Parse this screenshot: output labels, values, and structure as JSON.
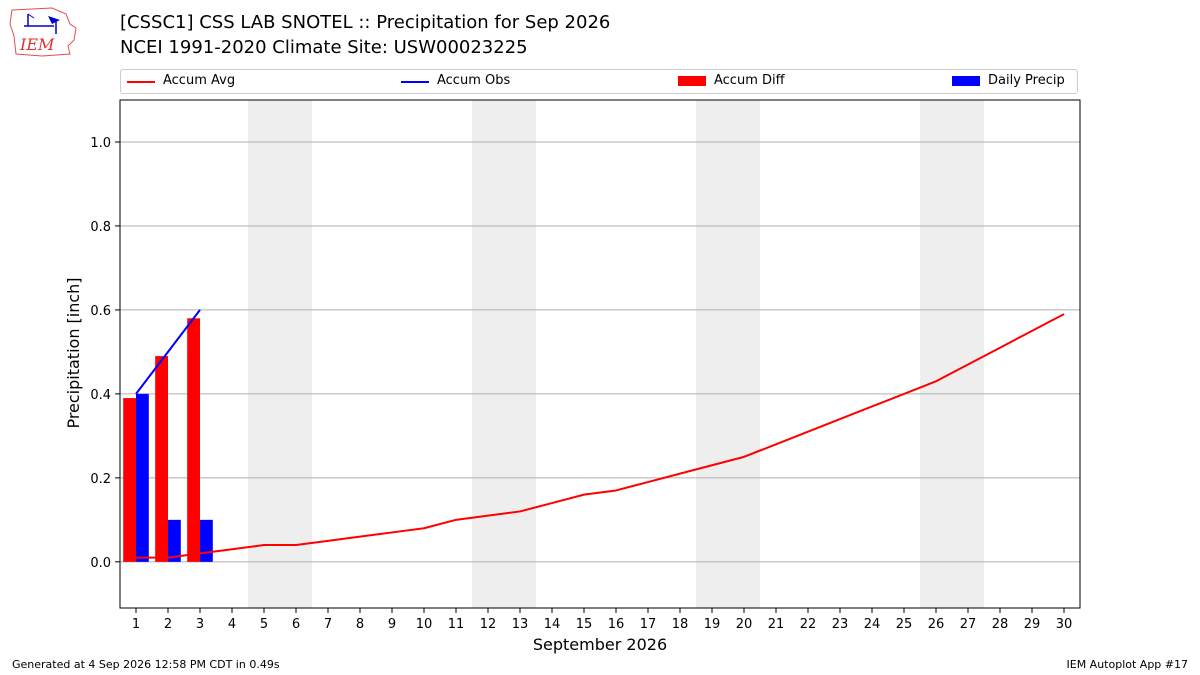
{
  "header": {
    "logo_text": "IEM",
    "title_line1": "[CSSC1] CSS LAB SNOTEL :: Precipitation for Sep 2026",
    "title_line2": "NCEI 1991-2020 Climate Site: USW00023225"
  },
  "legend": {
    "placement": "top, above plot",
    "items": [
      {
        "label": "Accum Avg",
        "kind": "line",
        "color": "#ff0000"
      },
      {
        "label": "Accum Obs",
        "kind": "line",
        "color": "#0000ff"
      },
      {
        "label": "Accum Diff",
        "kind": "bar",
        "color": "#ff0000"
      },
      {
        "label": "Daily Precip",
        "kind": "bar",
        "color": "#0000ff"
      }
    ]
  },
  "chart_data": {
    "type": "bar",
    "xlabel": "September 2026",
    "ylabel": "Precipitation [inch]",
    "xlim": [
      0.5,
      30.5
    ],
    "ylim": [
      -0.11,
      1.1
    ],
    "yticks": [
      0.0,
      0.2,
      0.4,
      0.6,
      0.8,
      1.0
    ],
    "ytick_labels": [
      "0.0",
      "0.2",
      "0.4",
      "0.6",
      "0.8",
      "1.0"
    ],
    "xticks": [
      1,
      2,
      3,
      4,
      5,
      6,
      7,
      8,
      9,
      10,
      11,
      12,
      13,
      14,
      15,
      16,
      17,
      18,
      19,
      20,
      21,
      22,
      23,
      24,
      25,
      26,
      27,
      28,
      29,
      30
    ],
    "grid": "horizontal",
    "weekend_shading": [
      [
        4.5,
        6.5
      ],
      [
        11.5,
        13.5
      ],
      [
        18.5,
        20.5
      ],
      [
        25.5,
        27.5
      ]
    ],
    "shade_color": "#eeeeee",
    "accum_avg": {
      "name": "Accum Avg",
      "color": "#ff0000",
      "x": [
        1,
        2,
        3,
        4,
        5,
        6,
        7,
        8,
        9,
        10,
        11,
        12,
        13,
        14,
        15,
        16,
        17,
        18,
        19,
        20,
        21,
        22,
        23,
        24,
        25,
        26,
        27,
        28,
        29,
        30
      ],
      "y": [
        0.01,
        0.01,
        0.02,
        0.03,
        0.04,
        0.04,
        0.05,
        0.06,
        0.07,
        0.08,
        0.1,
        0.11,
        0.12,
        0.14,
        0.16,
        0.17,
        0.19,
        0.21,
        0.23,
        0.25,
        0.28,
        0.31,
        0.34,
        0.37,
        0.4,
        0.43,
        0.47,
        0.51,
        0.55,
        0.59
      ]
    },
    "accum_obs": {
      "name": "Accum Obs",
      "color": "#0000ff",
      "x": [
        1,
        2,
        3
      ],
      "y": [
        0.4,
        0.5,
        0.6
      ]
    },
    "accum_diff": {
      "name": "Accum Diff",
      "color": "#ff0000",
      "x": [
        1,
        2,
        3
      ],
      "values": [
        0.39,
        0.49,
        0.58
      ]
    },
    "daily_precip": {
      "name": "Daily Precip",
      "color": "#0000ff",
      "x": [
        1,
        2,
        3
      ],
      "values": [
        0.4,
        0.1,
        0.1
      ]
    }
  },
  "footer": {
    "left": "Generated at 4 Sep 2026 12:58 PM CDT in 0.49s",
    "right": "IEM Autoplot App #17"
  }
}
